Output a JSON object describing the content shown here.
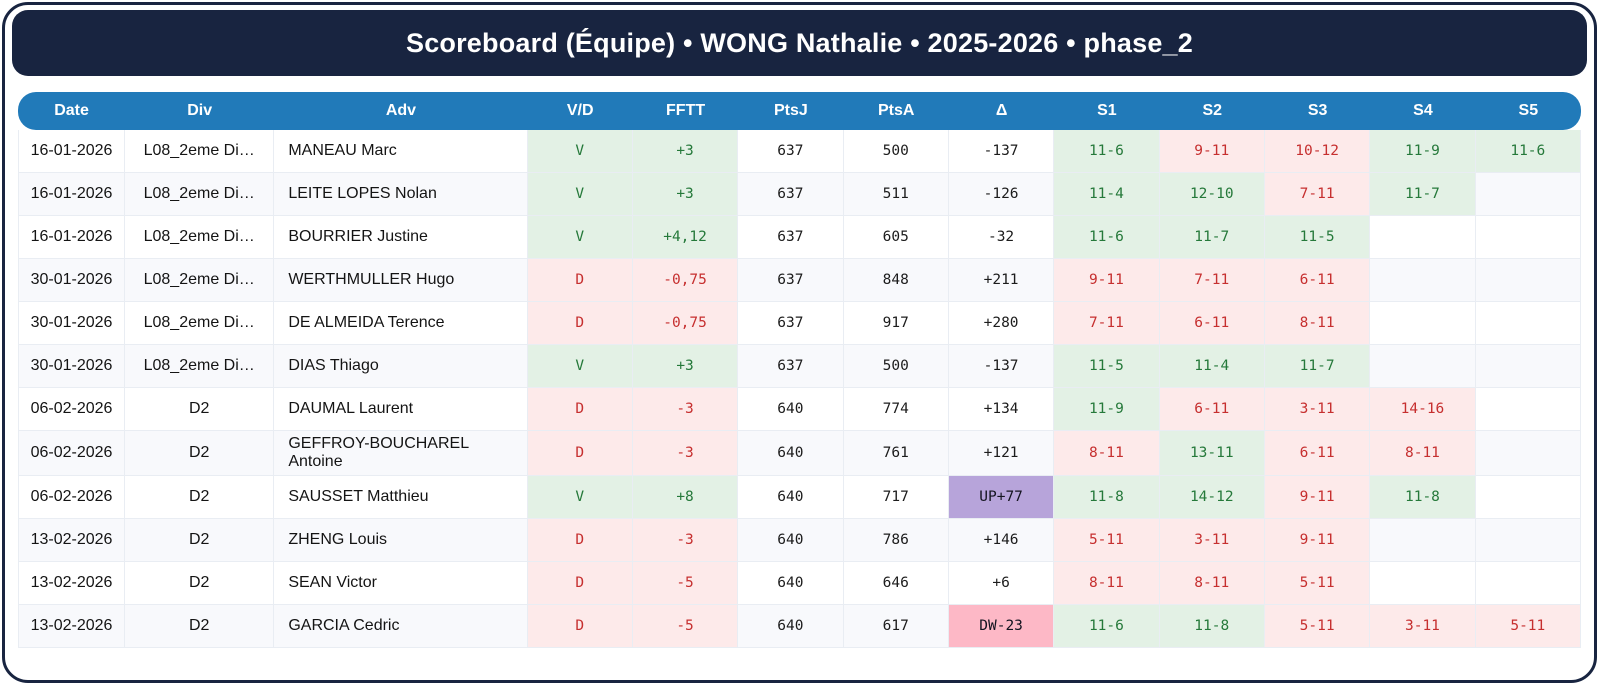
{
  "title": "Scoreboard (Équipe) • WONG Nathalie • 2025-2026 • phase_2",
  "colors": {
    "navy": "#182440",
    "header_blue": "#217ab9",
    "win_bg": "#e3f1e5",
    "win_text": "#25793a",
    "loss_bg": "#fdeaea",
    "loss_text": "#c62f2f",
    "promo_bg": "#b7a4da",
    "demo_bg": "#fdb8c6",
    "alt_row_bg": "#f8f9fc"
  },
  "table": {
    "columns": [
      "Date",
      "Div",
      "Adv",
      "V/D",
      "FFTT",
      "PtsJ",
      "PtsA",
      "Δ",
      "S1",
      "S2",
      "S3",
      "S4",
      "S5"
    ],
    "rows": [
      {
        "date": "16-01-2026",
        "div": "L08_2eme Di…",
        "adv": "MANEAU Marc",
        "vd": "V",
        "result": "win",
        "fftt": "+3",
        "ptsj": "637",
        "ptsa": "500",
        "delta": "-137",
        "delta_style": "normal",
        "sets": [
          {
            "score": "11-6",
            "result": "win"
          },
          {
            "score": "9-11",
            "result": "loss"
          },
          {
            "score": "10-12",
            "result": "loss"
          },
          {
            "score": "11-9",
            "result": "win"
          },
          {
            "score": "11-6",
            "result": "win"
          }
        ]
      },
      {
        "date": "16-01-2026",
        "div": "L08_2eme Di…",
        "adv": "LEITE LOPES Nolan",
        "vd": "V",
        "result": "win",
        "fftt": "+3",
        "ptsj": "637",
        "ptsa": "511",
        "delta": "-126",
        "delta_style": "normal",
        "sets": [
          {
            "score": "11-4",
            "result": "win"
          },
          {
            "score": "12-10",
            "result": "win"
          },
          {
            "score": "7-11",
            "result": "loss"
          },
          {
            "score": "11-7",
            "result": "win"
          },
          {
            "score": "",
            "result": ""
          }
        ]
      },
      {
        "date": "16-01-2026",
        "div": "L08_2eme Di…",
        "adv": "BOURRIER Justine",
        "vd": "V",
        "result": "win",
        "fftt": "+4,12",
        "ptsj": "637",
        "ptsa": "605",
        "delta": "-32",
        "delta_style": "normal",
        "sets": [
          {
            "score": "11-6",
            "result": "win"
          },
          {
            "score": "11-7",
            "result": "win"
          },
          {
            "score": "11-5",
            "result": "win"
          },
          {
            "score": "",
            "result": ""
          },
          {
            "score": "",
            "result": ""
          }
        ]
      },
      {
        "date": "30-01-2026",
        "div": "L08_2eme Di…",
        "adv": "WERTHMULLER Hugo",
        "vd": "D",
        "result": "loss",
        "fftt": "-0,75",
        "ptsj": "637",
        "ptsa": "848",
        "delta": "+211",
        "delta_style": "normal",
        "sets": [
          {
            "score": "9-11",
            "result": "loss"
          },
          {
            "score": "7-11",
            "result": "loss"
          },
          {
            "score": "6-11",
            "result": "loss"
          },
          {
            "score": "",
            "result": ""
          },
          {
            "score": "",
            "result": ""
          }
        ]
      },
      {
        "date": "30-01-2026",
        "div": "L08_2eme Di…",
        "adv": "DE ALMEIDA Terence",
        "vd": "D",
        "result": "loss",
        "fftt": "-0,75",
        "ptsj": "637",
        "ptsa": "917",
        "delta": "+280",
        "delta_style": "normal",
        "sets": [
          {
            "score": "7-11",
            "result": "loss"
          },
          {
            "score": "6-11",
            "result": "loss"
          },
          {
            "score": "8-11",
            "result": "loss"
          },
          {
            "score": "",
            "result": ""
          },
          {
            "score": "",
            "result": ""
          }
        ]
      },
      {
        "date": "30-01-2026",
        "div": "L08_2eme Di…",
        "adv": "DIAS Thiago",
        "vd": "V",
        "result": "win",
        "fftt": "+3",
        "ptsj": "637",
        "ptsa": "500",
        "delta": "-137",
        "delta_style": "normal",
        "sets": [
          {
            "score": "11-5",
            "result": "win"
          },
          {
            "score": "11-4",
            "result": "win"
          },
          {
            "score": "11-7",
            "result": "win"
          },
          {
            "score": "",
            "result": ""
          },
          {
            "score": "",
            "result": ""
          }
        ]
      },
      {
        "date": "06-02-2026",
        "div": "D2",
        "adv": "DAUMAL Laurent",
        "vd": "D",
        "result": "loss",
        "fftt": "-3",
        "ptsj": "640",
        "ptsa": "774",
        "delta": "+134",
        "delta_style": "normal",
        "sets": [
          {
            "score": "11-9",
            "result": "win"
          },
          {
            "score": "6-11",
            "result": "loss"
          },
          {
            "score": "3-11",
            "result": "loss"
          },
          {
            "score": "14-16",
            "result": "loss"
          },
          {
            "score": "",
            "result": ""
          }
        ]
      },
      {
        "date": "06-02-2026",
        "div": "D2",
        "adv": "GEFFROY-BOUCHAREL Antoine",
        "vd": "D",
        "result": "loss",
        "fftt": "-3",
        "ptsj": "640",
        "ptsa": "761",
        "delta": "+121",
        "delta_style": "normal",
        "sets": [
          {
            "score": "8-11",
            "result": "loss"
          },
          {
            "score": "13-11",
            "result": "win"
          },
          {
            "score": "6-11",
            "result": "loss"
          },
          {
            "score": "8-11",
            "result": "loss"
          },
          {
            "score": "",
            "result": ""
          }
        ]
      },
      {
        "date": "06-02-2026",
        "div": "D2",
        "adv": "SAUSSET Matthieu",
        "vd": "V",
        "result": "win",
        "fftt": "+8",
        "ptsj": "640",
        "ptsa": "717",
        "delta": "UP+77",
        "delta_style": "promotion",
        "sets": [
          {
            "score": "11-8",
            "result": "win"
          },
          {
            "score": "14-12",
            "result": "win"
          },
          {
            "score": "9-11",
            "result": "loss"
          },
          {
            "score": "11-8",
            "result": "win"
          },
          {
            "score": "",
            "result": ""
          }
        ]
      },
      {
        "date": "13-02-2026",
        "div": "D2",
        "adv": "ZHENG Louis",
        "vd": "D",
        "result": "loss",
        "fftt": "-3",
        "ptsj": "640",
        "ptsa": "786",
        "delta": "+146",
        "delta_style": "normal",
        "sets": [
          {
            "score": "5-11",
            "result": "loss"
          },
          {
            "score": "3-11",
            "result": "loss"
          },
          {
            "score": "9-11",
            "result": "loss"
          },
          {
            "score": "",
            "result": ""
          },
          {
            "score": "",
            "result": ""
          }
        ]
      },
      {
        "date": "13-02-2026",
        "div": "D2",
        "adv": "SEAN Victor",
        "vd": "D",
        "result": "loss",
        "fftt": "-5",
        "ptsj": "640",
        "ptsa": "646",
        "delta": "+6",
        "delta_style": "normal",
        "sets": [
          {
            "score": "8-11",
            "result": "loss"
          },
          {
            "score": "8-11",
            "result": "loss"
          },
          {
            "score": "5-11",
            "result": "loss"
          },
          {
            "score": "",
            "result": ""
          },
          {
            "score": "",
            "result": ""
          }
        ]
      },
      {
        "date": "13-02-2026",
        "div": "D2",
        "adv": "GARCIA Cedric",
        "vd": "D",
        "result": "loss",
        "fftt": "-5",
        "ptsj": "640",
        "ptsa": "617",
        "delta": "DW-23",
        "delta_style": "demotion",
        "sets": [
          {
            "score": "11-6",
            "result": "win"
          },
          {
            "score": "11-8",
            "result": "win"
          },
          {
            "score": "5-11",
            "result": "loss"
          },
          {
            "score": "3-11",
            "result": "loss"
          },
          {
            "score": "5-11",
            "result": "loss"
          }
        ]
      }
    ]
  }
}
